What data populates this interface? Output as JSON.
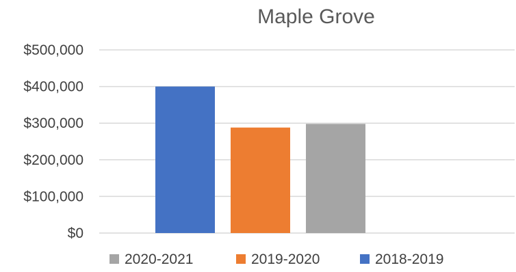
{
  "chart_data": {
    "type": "bar",
    "title": "Maple Grove",
    "xlabel": "",
    "ylabel": "",
    "ylim": [
      0,
      500000
    ],
    "y_ticks": [
      0,
      100000,
      200000,
      300000,
      400000,
      500000
    ],
    "y_tick_labels": [
      "$0",
      "$100,000",
      "$200,000",
      "$300,000",
      "$400,000",
      "$500,000"
    ],
    "grid": true,
    "legend_position": "bottom",
    "series": [
      {
        "name": "2018-2019",
        "value": 400000,
        "color": "#4472C4"
      },
      {
        "name": "2019-2020",
        "value": 288000,
        "color": "#ED7D31"
      },
      {
        "name": "2020-2021",
        "value": 298000,
        "color": "#A5A5A5"
      }
    ],
    "legend_order": [
      "2020-2021",
      "2019-2020",
      "2018-2019"
    ]
  }
}
